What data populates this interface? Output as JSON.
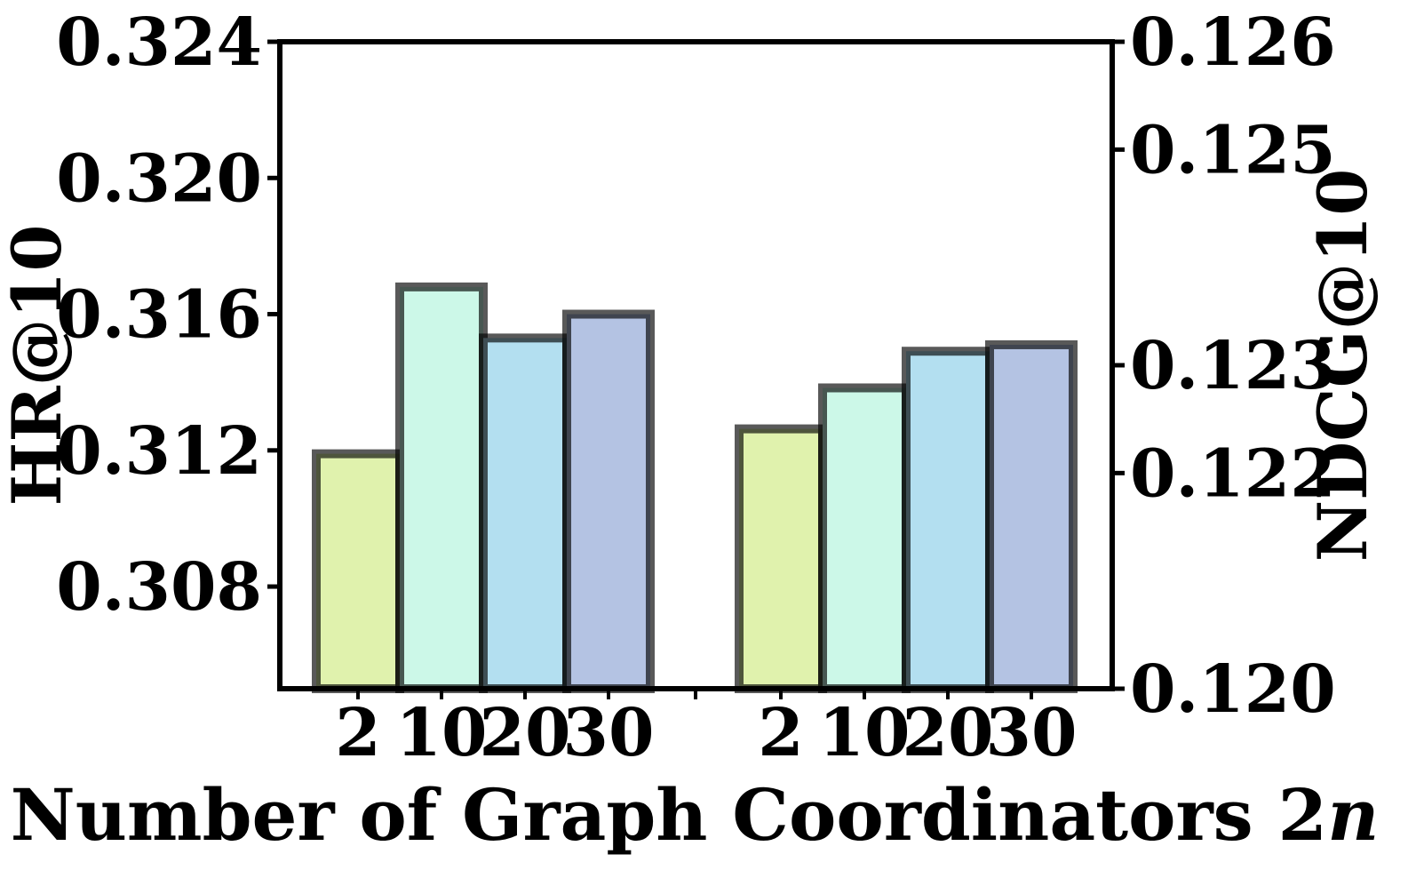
{
  "chart_data": {
    "type": "bar",
    "groups": [
      {
        "axis": "left",
        "categories": [
          "2",
          "10",
          "20",
          "30"
        ],
        "values": [
          0.3119,
          0.3168,
          0.3153,
          0.316
        ]
      },
      {
        "axis": "right",
        "categories": [
          "2",
          "10",
          "20",
          "30"
        ],
        "values": [
          0.12241,
          0.12279,
          0.12313,
          0.12319
        ]
      }
    ],
    "colors": [
      "#e0f2ad",
      "#ccf8e8",
      "#b3dff0",
      "#b4c3e3"
    ],
    "xlabel_main": "Number of Graph Coordinators 2",
    "xlabel_italic": "n",
    "ylabel_left": "HR@10",
    "ylabel_right": "NDCG@10",
    "ylim_left": [
      0.305,
      0.324
    ],
    "ylim_right": [
      0.12,
      0.126
    ],
    "yticks_left": [
      "0.308",
      "0.312",
      "0.316",
      "0.320",
      "0.324"
    ],
    "yticks_right": [
      "0.120",
      "0.122",
      "0.123",
      "0.125",
      "0.126"
    ],
    "yticks_left_values": [
      0.308,
      0.312,
      0.316,
      0.32,
      0.324
    ],
    "yticks_right_values": [
      0.12,
      0.122,
      0.123,
      0.125,
      0.126
    ],
    "grid": false,
    "legend": "none"
  }
}
